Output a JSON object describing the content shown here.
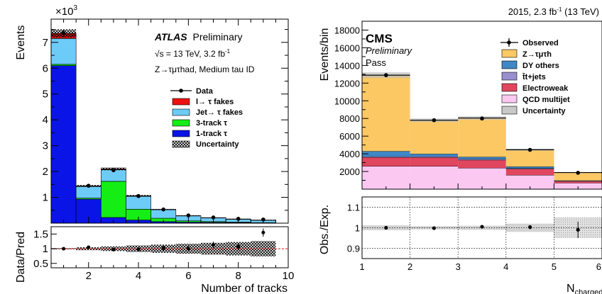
{
  "chart_data": [
    {
      "type": "bar",
      "stacked": true,
      "experiment": "ATLAS",
      "label_suffix": "Preliminary",
      "energy_line": "√s = 13 TeV, 3.2 fb",
      "energy_sup": "-1",
      "channel_line": "Z→τμτhad, Medium tau ID",
      "ylabel": "Events",
      "y_multiplier": "×10",
      "y_multiplier_exp": "3",
      "xlabel": "Number of tracks",
      "ratio_ylabel": "Data/Pred",
      "xlim": [
        0.5,
        10
      ],
      "ylim": [
        0,
        7.9
      ],
      "yunit_note": "values in thousands of events",
      "categories": [
        1,
        2,
        3,
        4,
        5,
        6,
        7,
        8,
        9
      ],
      "x_ticks": [
        "2",
        "4",
        "6",
        "8",
        "10"
      ],
      "y_ticks": [
        "1",
        "2",
        "3",
        "4",
        "5",
        "6",
        "7"
      ],
      "ratio_ticks": [
        "0.5",
        "1",
        "1.5"
      ],
      "ratio_ylim": [
        0.35,
        1.75
      ],
      "series": [
        {
          "name": "1-track τ",
          "color": "#0a14e6",
          "values": [
            6.1,
            0.93,
            0.22,
            0.12,
            0.06,
            0.04,
            0.03,
            0.02,
            0.01
          ]
        },
        {
          "name": "3-track τ",
          "color": "#14ee14",
          "values": [
            0.05,
            0.04,
            1.4,
            0.42,
            0.13,
            0.05,
            0.03,
            0.02,
            0.01
          ]
        },
        {
          "name": "Jet→ τ fakes",
          "color": "#6dcbf7",
          "values": [
            1.0,
            0.45,
            0.45,
            0.5,
            0.33,
            0.19,
            0.14,
            0.11,
            0.09
          ]
        },
        {
          "name": "l→ τ fakes",
          "color": "#ee1111",
          "values": [
            0.2,
            0.02,
            0.03,
            0.02,
            0.01,
            0.01,
            0.01,
            0.01,
            0.01
          ]
        }
      ],
      "uncertainty_label": "Uncertainty",
      "data": {
        "name": "Data",
        "values": [
          7.35,
          1.45,
          2.05,
          1.05,
          0.53,
          0.3,
          0.22,
          0.17,
          0.14
        ]
      },
      "ratio": [
        1.0,
        1.05,
        0.97,
        0.98,
        1.02,
        1.0,
        1.13,
        1.07,
        1.55
      ]
    },
    {
      "type": "bar",
      "stacked": true,
      "experiment": "CMS",
      "label_suffix": "Preliminary",
      "category_label": "Pass",
      "lumi": "2015, 2.3 fb",
      "lumi_sup": "-1",
      "lumi_tail": " (13 TeV)",
      "ylabel": "Events/bin",
      "xlabel": "N",
      "xlabel_sub": "charged",
      "ratio_ylabel": "Obs./Exp.",
      "categories": [
        1.5,
        2.5,
        3.5,
        4.5,
        5.5
      ],
      "bin_edges": [
        1,
        2,
        3,
        4,
        5,
        6
      ],
      "xlim": [
        1,
        6
      ],
      "ylim": [
        0,
        19000
      ],
      "x_ticks": [
        "1",
        "2",
        "3",
        "4",
        "5",
        "6"
      ],
      "y_ticks": [
        "2000",
        "4000",
        "6000",
        "8000",
        "10000",
        "12000",
        "14000",
        "16000",
        "18000"
      ],
      "ratio_ticks": [
        "0.9",
        "1",
        "1.1"
      ],
      "ratio_ylim": [
        0.85,
        1.15
      ],
      "series": [
        {
          "name": "QCD multijet",
          "color": "#fbc8f2",
          "values": [
            2600,
            2600,
            2400,
            1600,
            700
          ]
        },
        {
          "name": "Electroweak",
          "color": "#e0465e",
          "values": [
            1000,
            1000,
            900,
            700,
            200
          ]
        },
        {
          "name": "t̄t+jets",
          "color": "#9a8fce",
          "values": [
            100,
            100,
            100,
            60,
            30
          ]
        },
        {
          "name": "DY others",
          "color": "#3f87c6",
          "values": [
            600,
            300,
            250,
            200,
            50
          ]
        },
        {
          "name": "Z→τμτh",
          "color": "#fbc864",
          "values": [
            8600,
            3800,
            4400,
            1900,
            900
          ]
        }
      ],
      "uncertainty_label": "Uncertainty",
      "data": {
        "name": "Observed",
        "values": [
          12900,
          7800,
          8000,
          4450,
          1850
        ]
      },
      "ratio": [
        1.0,
        0.998,
        1.005,
        1.003,
        0.99
      ]
    }
  ]
}
